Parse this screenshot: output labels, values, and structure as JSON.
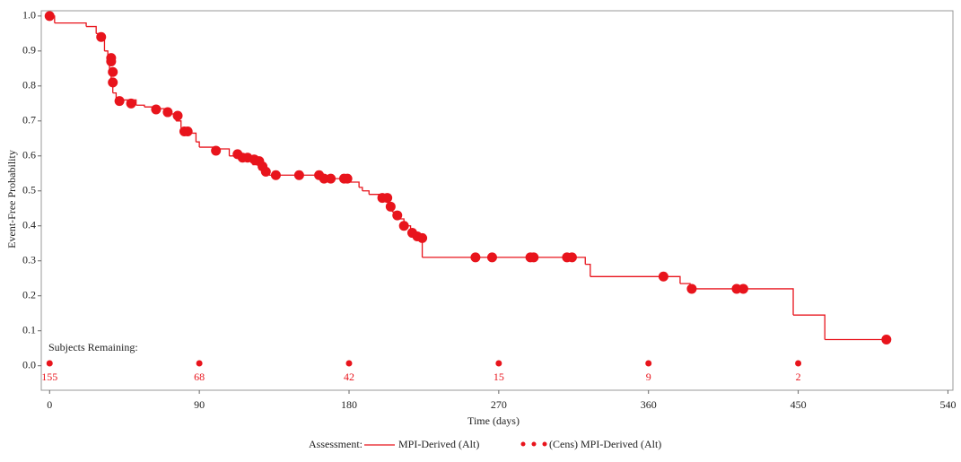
{
  "chart_data": {
    "type": "kaplan-meier",
    "x_label": "Time (days)",
    "y_label": "Event-Free Probability",
    "xlim": [
      -5,
      543
    ],
    "ylim": [
      -0.07,
      1.015
    ],
    "xticks": [
      0,
      90,
      180,
      270,
      360,
      450,
      540
    ],
    "yticks": [
      {
        "value": 0,
        "label": "0.0"
      },
      0.1,
      0.2,
      0.3,
      0.4,
      0.5,
      0.6,
      0.7,
      0.8,
      0.9,
      {
        "value": 1,
        "label": "1.0"
      }
    ],
    "color": "#e8141c",
    "legend_title": "Assessment:",
    "series": [
      {
        "name": "MPI-Derived (Alt)",
        "x": [
          0,
          3,
          22,
          28,
          31,
          33,
          35,
          36,
          37,
          38,
          40,
          52,
          57,
          63,
          72,
          76,
          79,
          82,
          88,
          90,
          100,
          108,
          122,
          126,
          132,
          165,
          176,
          186,
          188,
          192,
          198,
          204,
          206,
          208,
          213,
          217,
          220,
          224,
          322,
          325,
          379,
          385,
          447,
          466,
          503
        ],
        "values": [
          1.0,
          0.98,
          0.97,
          0.95,
          0.93,
          0.9,
          0.87,
          0.84,
          0.81,
          0.78,
          0.76,
          0.745,
          0.74,
          0.735,
          0.72,
          0.7,
          0.68,
          0.665,
          0.64,
          0.625,
          0.62,
          0.6,
          0.575,
          0.56,
          0.545,
          0.535,
          0.525,
          0.51,
          0.5,
          0.49,
          0.48,
          0.46,
          0.44,
          0.42,
          0.4,
          0.385,
          0.37,
          0.31,
          0.29,
          0.255,
          0.235,
          0.22,
          0.145,
          0.075,
          0.075
        ]
      },
      {
        "name": "(Cens) MPI-Derived (Alt)",
        "x": [
          0,
          31,
          37,
          37,
          38,
          38,
          42,
          49,
          64,
          71,
          77,
          81,
          83,
          100,
          113,
          116,
          119,
          123,
          126,
          128,
          130,
          136,
          150,
          162,
          165,
          169,
          177,
          179,
          200,
          203,
          205,
          209,
          213,
          218,
          221,
          224,
          256,
          266,
          289,
          291,
          311,
          314,
          369,
          386,
          413,
          417,
          503
        ],
        "values": [
          1.0,
          0.94,
          0.88,
          0.87,
          0.84,
          0.81,
          0.757,
          0.75,
          0.733,
          0.725,
          0.715,
          0.67,
          0.67,
          0.615,
          0.605,
          0.595,
          0.595,
          0.59,
          0.585,
          0.57,
          0.555,
          0.545,
          0.545,
          0.545,
          0.535,
          0.535,
          0.535,
          0.535,
          0.48,
          0.48,
          0.455,
          0.43,
          0.4,
          0.38,
          0.37,
          0.365,
          0.31,
          0.31,
          0.31,
          0.31,
          0.31,
          0.31,
          0.255,
          0.22,
          0.22,
          0.22,
          0.075
        ]
      }
    ],
    "at_risk": {
      "title": "Subjects Remaining:",
      "x": [
        0,
        90,
        180,
        270,
        360,
        450
      ],
      "counts": [
        155,
        68,
        42,
        15,
        9,
        2
      ]
    }
  }
}
